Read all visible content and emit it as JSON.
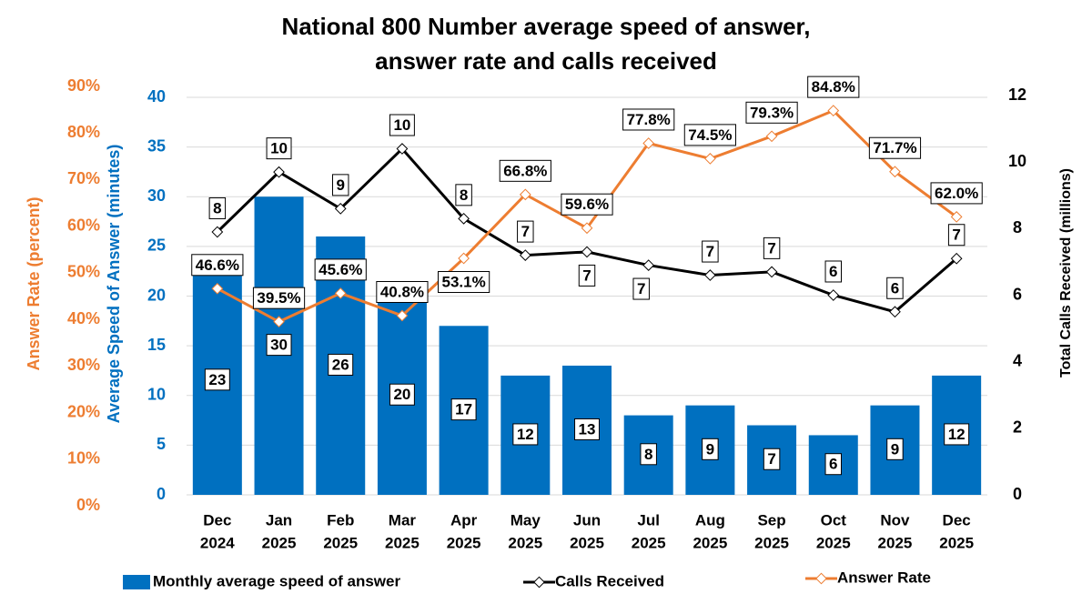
{
  "chart_data": {
    "type": "bar-line",
    "title": [
      "National 800 Number average speed of answer,",
      "answer rate and calls received"
    ],
    "categories": [
      [
        "Dec",
        "2024"
      ],
      [
        "Jan",
        "2025"
      ],
      [
        "Feb",
        "2025"
      ],
      [
        "Mar",
        "2025"
      ],
      [
        "Apr",
        "2025"
      ],
      [
        "May",
        "2025"
      ],
      [
        "Jun",
        "2025"
      ],
      [
        "Jul",
        "2025"
      ],
      [
        "Aug",
        "2025"
      ],
      [
        "Sep",
        "2025"
      ],
      [
        "Oct",
        "2025"
      ],
      [
        "Nov",
        "2025"
      ],
      [
        "Dec",
        "2025"
      ]
    ],
    "ylabel": "Average Speed of Answer (minutes)",
    "y2label": "Total Calls Received (millions)",
    "y3label": "Answer Rate (percent)",
    "ylim": [
      0,
      40
    ],
    "yticks": [
      0,
      5,
      10,
      15,
      20,
      25,
      30,
      35,
      40
    ],
    "y2lim": [
      0,
      12
    ],
    "y2ticks": [
      0,
      2,
      4,
      6,
      8,
      10,
      12
    ],
    "y3lim": [
      0,
      90
    ],
    "y3ticks": [
      {
        "value": 0,
        "label": "0%"
      },
      {
        "value": 10,
        "label": "10%"
      },
      {
        "value": 20,
        "label": "20%"
      },
      {
        "value": 30,
        "label": "30%"
      },
      {
        "value": 40,
        "label": "40%"
      },
      {
        "value": 50,
        "label": "50%"
      },
      {
        "value": 60,
        "label": "60%"
      },
      {
        "value": 70,
        "label": "70%"
      },
      {
        "value": 80,
        "label": "80%"
      },
      {
        "value": 90,
        "label": "90%"
      }
    ],
    "series": [
      {
        "name": "Monthly average speed of answer",
        "type": "bar",
        "axis": "y",
        "color": "#0070c0",
        "values": [
          23,
          30,
          26,
          20,
          17,
          12,
          13,
          8,
          9,
          7,
          6,
          9,
          12
        ]
      },
      {
        "name": "Calls Received",
        "type": "line",
        "axis": "y2",
        "color": "#000000",
        "values": [
          7.9,
          9.7,
          8.6,
          10.4,
          8.3,
          7.2,
          7.3,
          6.9,
          6.6,
          6.7,
          6.0,
          5.5,
          7.1
        ],
        "value_labels": [
          "8",
          "10",
          "9",
          "10",
          "8",
          "7",
          "7",
          "7",
          "7",
          "7",
          "6",
          "6",
          "7"
        ]
      },
      {
        "name": "Answer Rate",
        "type": "line",
        "axis": "y3",
        "color": "#ed7d31",
        "values": [
          46.6,
          39.5,
          45.6,
          40.8,
          53.1,
          66.8,
          59.6,
          77.8,
          74.5,
          79.3,
          84.8,
          71.7,
          62.0
        ],
        "value_labels": [
          "46.6%",
          "39.5%",
          "45.6%",
          "40.8%",
          "53.1%",
          "66.8%",
          "59.6%",
          "77.8%",
          "74.5%",
          "79.3%",
          "84.8%",
          "71.7%",
          "62.0%"
        ]
      }
    ]
  }
}
